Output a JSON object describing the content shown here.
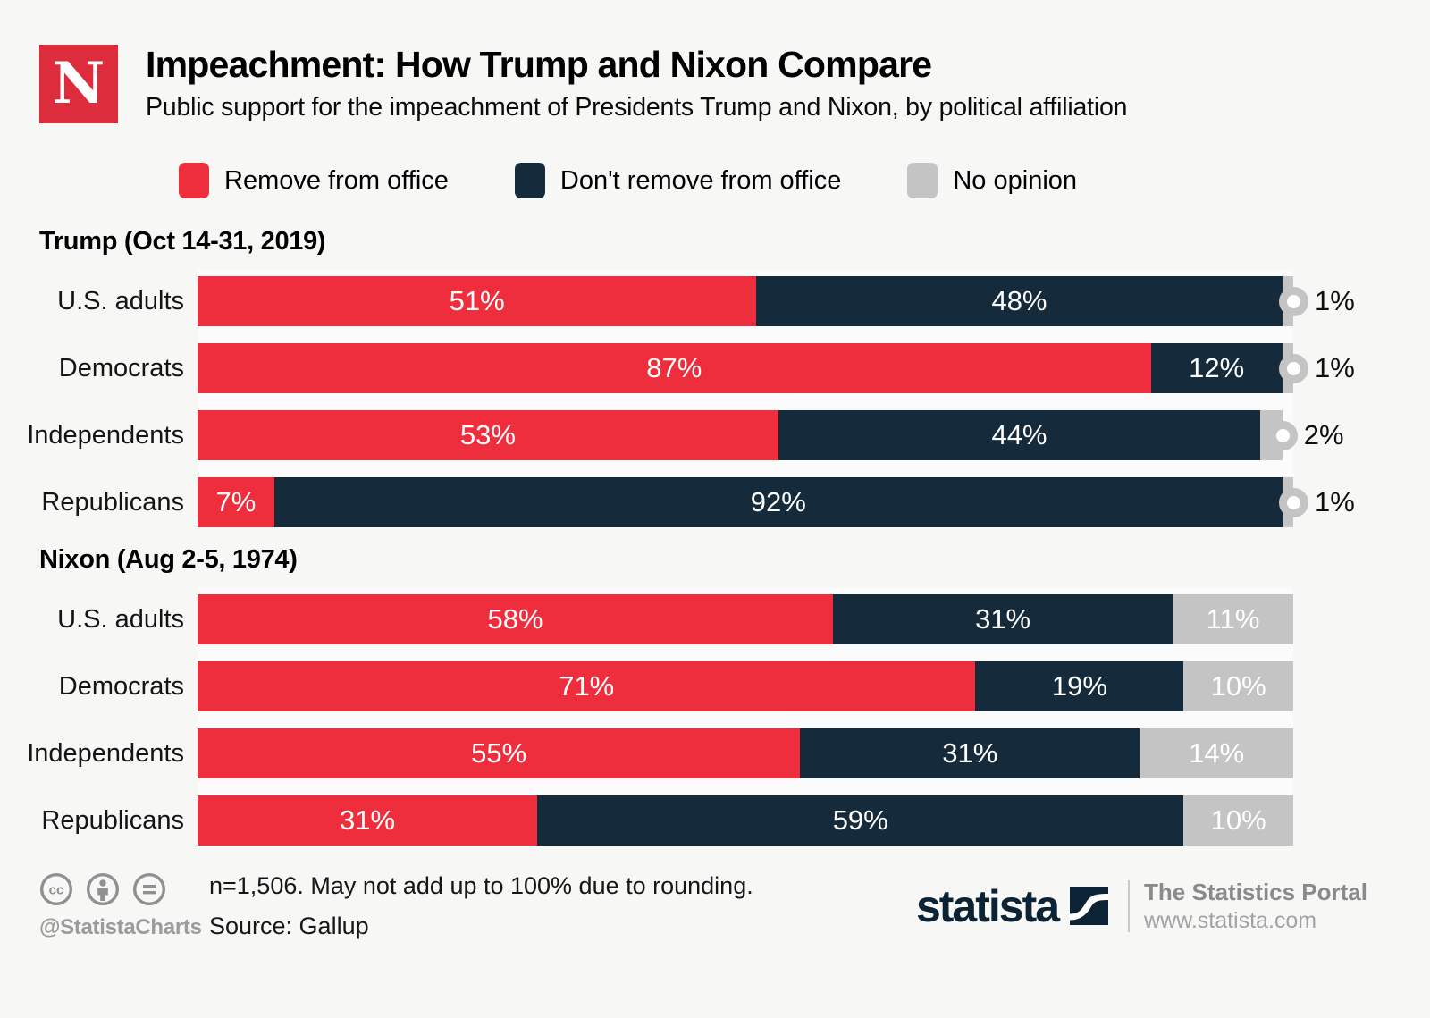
{
  "header": {
    "logo_letter": "N",
    "title": "Impeachment: How Trump and Nixon Compare",
    "subtitle": "Public support for the impeachment of Presidents Trump and Nixon, by political affiliation"
  },
  "legend": {
    "items": [
      {
        "label": "Remove from office",
        "color": "#ee2e3d"
      },
      {
        "label": "Don't remove from office",
        "color": "#152b3c"
      },
      {
        "label": "No opinion",
        "color": "#c4c4c4"
      }
    ]
  },
  "colors": {
    "remove": "#ee2e3d",
    "dont_remove": "#152b3c",
    "no_opinion": "#c4c4c4",
    "page_background": "#f7f7f6",
    "newsweek_red": "#dd2c3b",
    "statista_navy": "#0c2335"
  },
  "chart_data": {
    "type": "bar",
    "orientation": "horizontal",
    "stacked": true,
    "unit": "%",
    "xlim": [
      0,
      100
    ],
    "grid": false,
    "legend_position": "top",
    "series_names": [
      "Remove from office",
      "Don't remove from office",
      "No opinion"
    ],
    "groups": [
      {
        "heading": "Trump (Oct 14-31, 2019)",
        "end_marker": "ring",
        "categories": [
          "U.S. adults",
          "Democrats",
          "Independents",
          "Republicans"
        ],
        "rows": [
          {
            "category": "U.S. adults",
            "remove": 51,
            "dont_remove": 48,
            "no_opinion": 1
          },
          {
            "category": "Democrats",
            "remove": 87,
            "dont_remove": 12,
            "no_opinion": 1
          },
          {
            "category": "Independents",
            "remove": 53,
            "dont_remove": 44,
            "no_opinion": 2
          },
          {
            "category": "Republicans",
            "remove": 7,
            "dont_remove": 92,
            "no_opinion": 1
          }
        ]
      },
      {
        "heading": "Nixon (Aug 2-5, 1974)",
        "end_marker": "none",
        "categories": [
          "U.S. adults",
          "Democrats",
          "Independents",
          "Republicans"
        ],
        "rows": [
          {
            "category": "U.S. adults",
            "remove": 58,
            "dont_remove": 31,
            "no_opinion": 11
          },
          {
            "category": "Democrats",
            "remove": 71,
            "dont_remove": 19,
            "no_opinion": 10
          },
          {
            "category": "Independents",
            "remove": 55,
            "dont_remove": 31,
            "no_opinion": 14
          },
          {
            "category": "Republicans",
            "remove": 31,
            "dont_remove": 59,
            "no_opinion": 10
          }
        ]
      }
    ]
  },
  "footer": {
    "handle": "@StatistaCharts",
    "note_line1": "n=1,506. May not add up to 100% due to rounding.",
    "note_line2": "Source: Gallup",
    "statista_wordmark": "statista",
    "portal_line1": "The Statistics Portal",
    "portal_line2": "www.statista.com"
  }
}
